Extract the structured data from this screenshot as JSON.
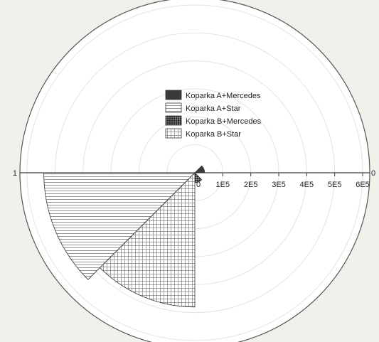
{
  "chart_data": {
    "type": "polar-rose",
    "title": "",
    "radial_axis": {
      "ticks": [
        0,
        100000,
        200000,
        300000,
        400000,
        500000,
        600000
      ],
      "tick_labels": [
        "0",
        "1E5",
        "2E5",
        "3E5",
        "4E5",
        "5E5",
        "6E5"
      ],
      "range": [
        0,
        600000
      ]
    },
    "angle_labels": [
      {
        "text": "0",
        "angle_deg": 0
      },
      {
        "text": "1",
        "angle_deg": 180
      }
    ],
    "grid": true,
    "legend": {
      "placement": "inside-top-right",
      "entries": [
        {
          "label": "Koparka A+Mercedes",
          "pattern": "solid-dark"
        },
        {
          "label": "Koparka A+Star",
          "pattern": "horizontal-lines"
        },
        {
          "label": "Koparka B+Mercedes",
          "pattern": "dense-grid"
        },
        {
          "label": "Koparka B+Star",
          "pattern": "grid"
        }
      ]
    },
    "series": [
      {
        "name": "Koparka A+Mercedes",
        "value": 35000,
        "start_deg": 0,
        "end_deg": 45
      },
      {
        "name": "Koparka A+Star",
        "value": 540000,
        "start_deg": 180,
        "end_deg": 225
      },
      {
        "name": "Koparka B+Mercedes",
        "value": 35000,
        "start_deg": 270,
        "end_deg": 315
      },
      {
        "name": "Koparka B+Star",
        "value": 480000,
        "start_deg": 225,
        "end_deg": 270
      }
    ]
  }
}
